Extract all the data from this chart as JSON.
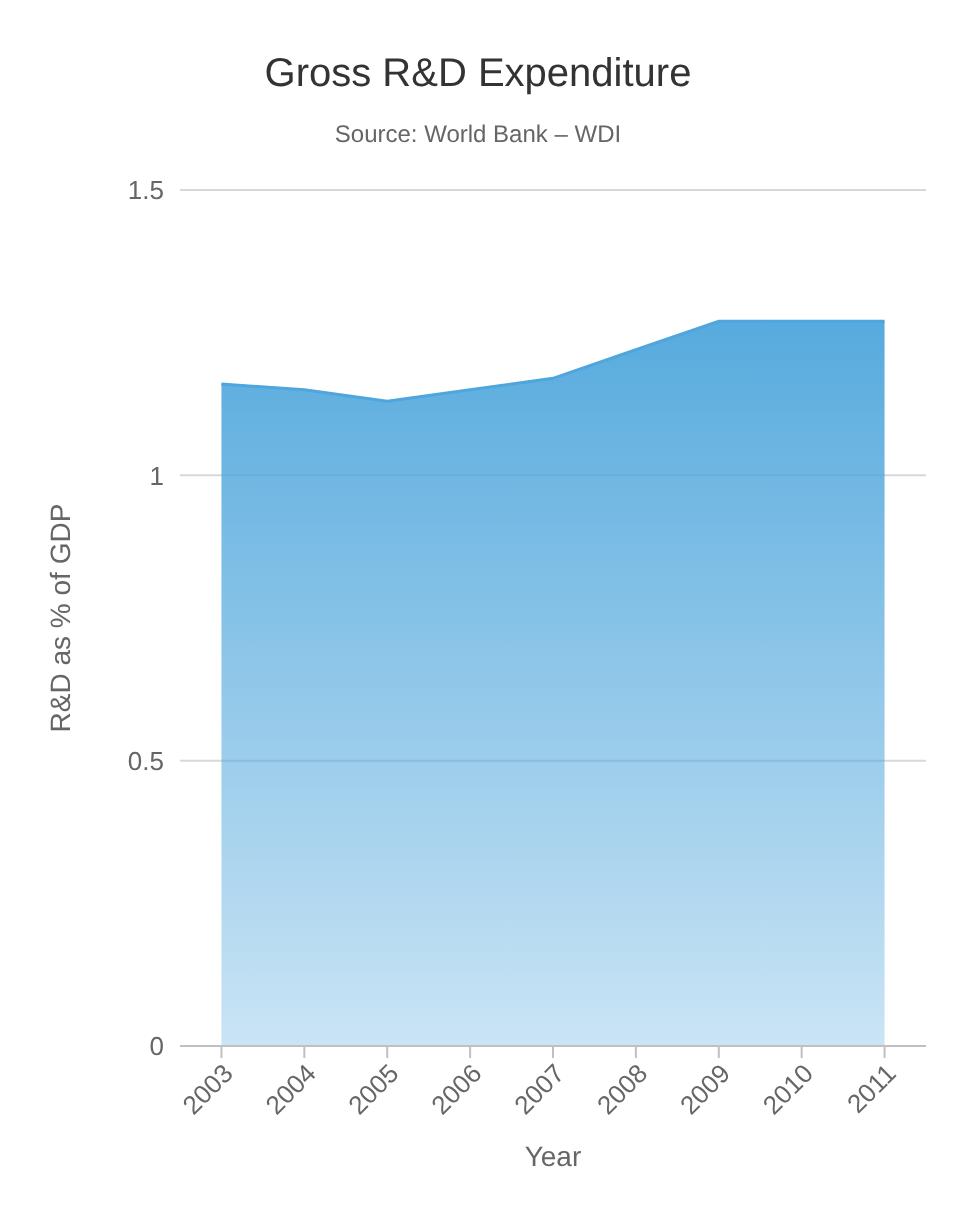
{
  "chart_data": {
    "type": "area",
    "title": "Gross R&D Expenditure",
    "subtitle": "Source: World Bank – WDI",
    "xlabel": "Year",
    "ylabel": "R&D as % of GDP",
    "categories": [
      "2003",
      "2004",
      "2005",
      "2006",
      "2007",
      "2008",
      "2009",
      "2010",
      "2011"
    ],
    "series": [
      {
        "color": "#4ea6dc",
        "values": [
          1.16,
          1.15,
          1.13,
          1.15,
          1.17,
          1.22,
          1.27,
          1.27,
          1.27
        ]
      }
    ],
    "ylim": [
      0,
      1.5
    ],
    "yticks": [
      0,
      0.5,
      1,
      1.5
    ],
    "grid": "y",
    "legend": false
  }
}
